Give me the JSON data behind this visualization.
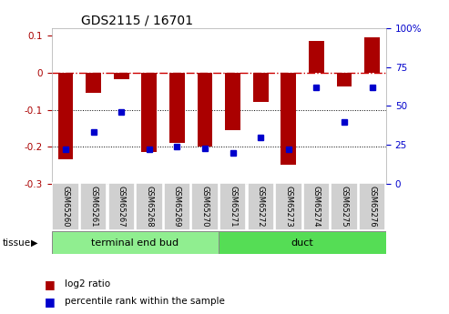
{
  "title": "GDS2115 / 16701",
  "samples": [
    "GSM65260",
    "GSM65261",
    "GSM65267",
    "GSM65268",
    "GSM65269",
    "GSM65270",
    "GSM65271",
    "GSM65272",
    "GSM65273",
    "GSM65274",
    "GSM65275",
    "GSM65276"
  ],
  "log2_ratio": [
    -0.235,
    -0.055,
    -0.018,
    -0.215,
    -0.19,
    -0.2,
    -0.155,
    -0.08,
    -0.25,
    0.085,
    -0.038,
    0.095
  ],
  "percentile": [
    22,
    33,
    46,
    22,
    24,
    23,
    20,
    30,
    22,
    62,
    40,
    62
  ],
  "tissue_groups": [
    {
      "label": "terminal end bud",
      "start": 0,
      "end": 6,
      "color": "#90EE90"
    },
    {
      "label": "duct",
      "start": 6,
      "end": 12,
      "color": "#55DD55"
    }
  ],
  "bar_color": "#AA0000",
  "dot_color": "#0000CC",
  "ylim_left": [
    -0.3,
    0.12
  ],
  "ylim_right": [
    0,
    100
  ],
  "hline_zero_color": "#CC0000",
  "hline_grid_color": "#000000",
  "background_color": "#ffffff",
  "ylabel_left_color": "#AA0000",
  "ylabel_right_color": "#0000CC",
  "yticks_left": [
    -0.3,
    -0.2,
    -0.1,
    0.0,
    0.1
  ],
  "yticks_right": [
    0,
    25,
    50,
    75,
    100
  ],
  "tissue_label": "tissue",
  "legend_log2": "log2 ratio",
  "legend_pct": "percentile rank within the sample",
  "title_fontsize": 10,
  "bar_width": 0.55
}
